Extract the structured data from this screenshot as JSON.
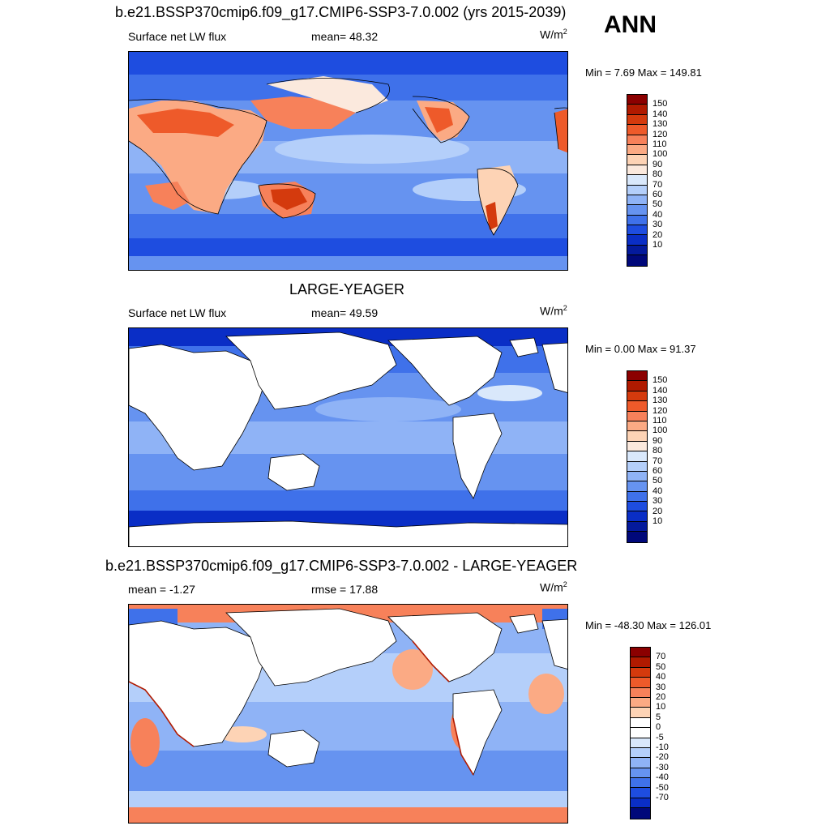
{
  "season": "ANN",
  "panels": [
    {
      "title": "b.e21.BSSP370cmip6.f09_g17.CMIP6-SSP3-7.0.002 (yrs 2015-2039)",
      "left_label": "Surface net LW flux",
      "center_label": "mean=  48.32",
      "units": "W/m",
      "units_sup": "2",
      "minmax": "Min =   7.69 Max = 149.81",
      "colorbar": {
        "colors": [
          "#8b0000",
          "#b01a00",
          "#d43a0d",
          "#ee5a2a",
          "#f7815a",
          "#fbaa84",
          "#fdd3b5",
          "#fbe9dd",
          "#d9e8fb",
          "#b4cffa",
          "#8fb3f6",
          "#6693f0",
          "#3f71ea",
          "#1e4de0",
          "#0a2ec6",
          "#041a9c",
          "#00087a"
        ],
        "labels": [
          "150",
          "140",
          "130",
          "120",
          "110",
          "100",
          "90",
          "80",
          "70",
          "60",
          "50",
          "40",
          "30",
          "20",
          "10"
        ]
      }
    },
    {
      "title": "LARGE-YEAGER",
      "left_label": "Surface net LW flux",
      "center_label": "mean=  49.59",
      "units": "W/m",
      "units_sup": "2",
      "minmax": "Min =   0.00 Max =  91.37",
      "colorbar": {
        "colors": [
          "#8b0000",
          "#b01a00",
          "#d43a0d",
          "#ee5a2a",
          "#f7815a",
          "#fbaa84",
          "#fdd3b5",
          "#fbe9dd",
          "#d9e8fb",
          "#b4cffa",
          "#8fb3f6",
          "#6693f0",
          "#3f71ea",
          "#1e4de0",
          "#0a2ec6",
          "#041a9c",
          "#00087a"
        ],
        "labels": [
          "150",
          "140",
          "130",
          "120",
          "110",
          "100",
          "90",
          "80",
          "70",
          "60",
          "50",
          "40",
          "30",
          "20",
          "10"
        ]
      }
    },
    {
      "title": "b.e21.BSSP370cmip6.f09_g17.CMIP6-SSP3-7.0.002 - LARGE-YEAGER",
      "left_label": "mean =  -1.27",
      "center_label": "rmse =  17.88",
      "units": "W/m",
      "units_sup": "2",
      "minmax": "Min = -48.30 Max = 126.01",
      "colorbar": {
        "colors": [
          "#8b0000",
          "#b01a00",
          "#d43a0d",
          "#ee5a2a",
          "#f7815a",
          "#fbaa84",
          "#fdd3b5",
          "#ffffff",
          "#ffffff",
          "#d9e8fb",
          "#b4cffa",
          "#8fb3f6",
          "#6693f0",
          "#3f71ea",
          "#1e4de0",
          "#0a2ec6",
          "#00087a"
        ],
        "labels": [
          "70",
          "50",
          "40",
          "30",
          "20",
          "10",
          "5",
          "0",
          "-5",
          "-10",
          "-20",
          "-30",
          "-40",
          "-50",
          "-70"
        ]
      }
    }
  ]
}
